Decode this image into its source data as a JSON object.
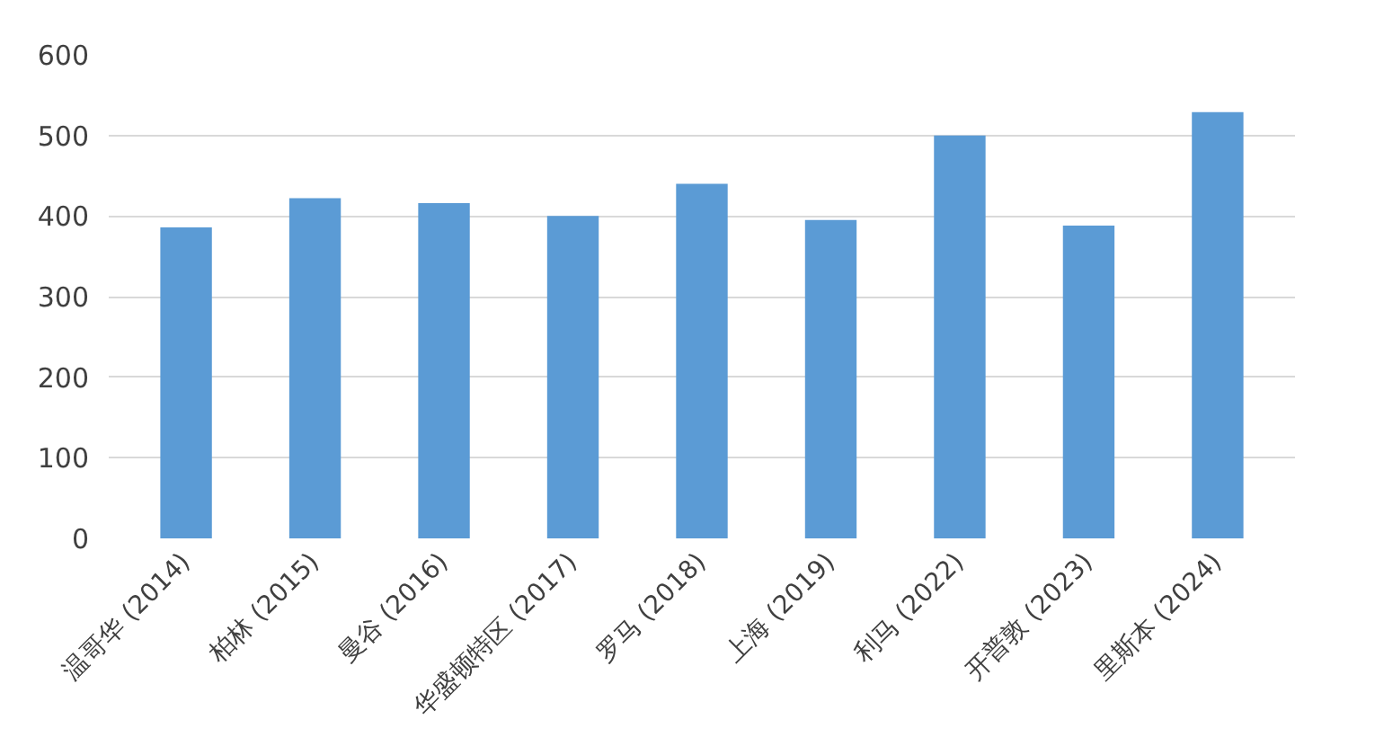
{
  "chart_data": {
    "type": "bar",
    "categories": [
      "温哥华 (2014)",
      "柏林 (2015)",
      "曼谷 (2016)",
      "华盛顿特区 (2017)",
      "罗马 (2018)",
      "上海 (2019)",
      "利马 (2022)",
      "开普敦 (2023)",
      "里斯本 (2024)"
    ],
    "values": [
      386,
      422,
      416,
      400,
      440,
      395,
      500,
      388,
      529
    ],
    "color": "#5b9bd5",
    "ylim": [
      0,
      600
    ],
    "yticks": [
      0,
      100,
      200,
      300,
      400,
      500,
      600
    ],
    "grid": "y"
  }
}
